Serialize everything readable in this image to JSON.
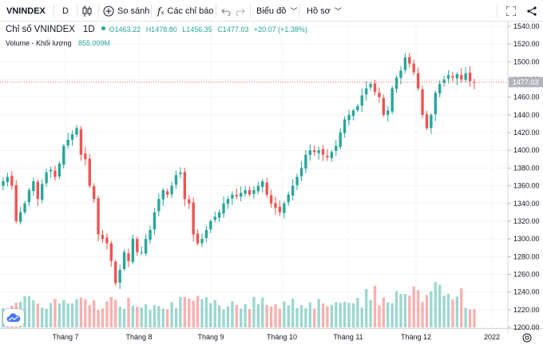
{
  "toolbar": {
    "symbol": "VNINDEX",
    "interval": "D",
    "compare_label": "So sánh",
    "indicators_label": "Các chỉ báo",
    "chart_type_label": "Biểu đồ",
    "profile_label": "Hồ sơ"
  },
  "legend": {
    "name": "Chỉ số VNINDEX",
    "timeframe": "1D",
    "open": "O1463.22",
    "high": "H1478.80",
    "low": "L1456.35",
    "close": "C1477.03",
    "change": "+20.07 (+1.38%)",
    "volume_label": "Volume - Khối lượng",
    "volume_value": "855.009M"
  },
  "colors": {
    "up": "#26a69a",
    "down": "#ef5350",
    "last_price_line": "#ef5350"
  },
  "chart_data": {
    "type": "candlestick",
    "ylim": [
      1200,
      1540
    ],
    "y_ticks": [
      "1540.00",
      "1520.00",
      "1500.00",
      "1480.00",
      "1460.00",
      "1440.00",
      "1420.00",
      "1400.00",
      "1380.00",
      "1360.00",
      "1340.00",
      "1320.00",
      "1300.00",
      "1280.00",
      "1260.00",
      "1240.00",
      "1220.00",
      "1200.00"
    ],
    "x_labels": [
      "Tháng 7",
      "Tháng 8",
      "Tháng 9",
      "Tháng 10",
      "Tháng 11",
      "Tháng 12",
      "2022"
    ],
    "last_price": "1477.03",
    "last_price_value": 1477.03,
    "close_series": [
      1365,
      1370,
      1360,
      1320,
      1330,
      1340,
      1355,
      1365,
      1345,
      1362,
      1375,
      1378,
      1370,
      1385,
      1405,
      1412,
      1418,
      1425,
      1395,
      1390,
      1360,
      1345,
      1305,
      1300,
      1295,
      1275,
      1250,
      1265,
      1285,
      1275,
      1300,
      1285,
      1285,
      1300,
      1310,
      1330,
      1345,
      1355,
      1350,
      1360,
      1372,
      1375,
      1345,
      1340,
      1305,
      1295,
      1300,
      1310,
      1320,
      1325,
      1330,
      1340,
      1345,
      1350,
      1348,
      1352,
      1355,
      1350,
      1355,
      1360,
      1365,
      1350,
      1340,
      1335,
      1330,
      1340,
      1350,
      1360,
      1370,
      1380,
      1395,
      1400,
      1398,
      1400,
      1395,
      1392,
      1398,
      1405,
      1420,
      1435,
      1440,
      1445,
      1450,
      1462,
      1470,
      1475,
      1466,
      1460,
      1440,
      1445,
      1470,
      1482,
      1490,
      1505,
      1498,
      1488,
      1470,
      1440,
      1425,
      1440,
      1465,
      1475,
      1480,
      1485,
      1482,
      1486,
      1480,
      1487,
      1478,
      1477
    ],
    "volume_series": [
      1,
      1,
      1,
      1,
      1,
      1,
      1,
      1,
      1,
      1,
      1,
      1,
      1,
      1,
      1,
      1,
      1,
      1,
      1,
      1,
      1,
      1,
      1,
      1,
      1,
      1,
      1,
      1,
      1,
      1,
      1,
      1,
      1,
      1,
      1,
      1,
      1,
      1,
      1,
      1,
      1,
      1,
      1,
      1,
      1,
      1,
      1,
      1,
      1,
      1,
      1,
      1,
      1,
      1,
      1,
      1,
      1,
      1,
      1,
      1,
      1,
      1,
      1,
      1,
      1,
      1,
      1,
      1,
      1,
      1,
      1,
      1,
      1,
      1,
      1,
      1,
      1,
      1,
      1,
      1,
      1,
      1,
      1,
      1,
      1,
      1,
      1,
      1,
      1,
      1,
      1,
      1,
      1,
      1,
      1,
      1,
      1,
      1,
      1,
      1,
      1,
      1,
      1,
      1,
      1,
      1,
      1,
      1,
      1,
      1
    ]
  }
}
